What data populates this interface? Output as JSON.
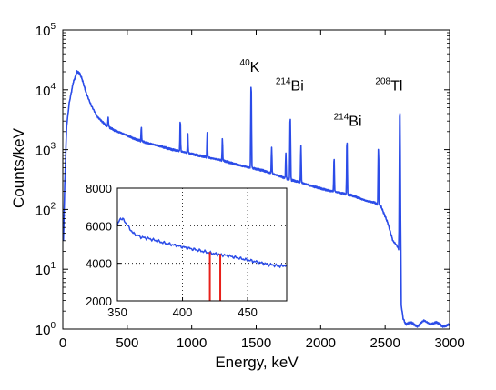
{
  "chart_data": [
    {
      "id": "main",
      "type": "line",
      "xlabel": "Energy, keV",
      "ylabel": "Counts/keV",
      "xlim": [
        0,
        3000
      ],
      "ylim": [
        1,
        100000
      ],
      "yscale": "log",
      "xticks": [
        0,
        500,
        1000,
        1500,
        2000,
        2500,
        3000
      ],
      "xtick_labels": [
        "0",
        "500",
        "1000",
        "1500",
        "2000",
        "2500",
        "3000"
      ],
      "yticks": [
        1,
        10,
        100,
        1000,
        10000,
        100000
      ],
      "ytick_labels": [
        {
          "base": "10",
          "exp": "0"
        },
        {
          "base": "10",
          "exp": "1"
        },
        {
          "base": "10",
          "exp": "2"
        },
        {
          "base": "10",
          "exp": "3"
        },
        {
          "base": "10",
          "exp": "4"
        },
        {
          "base": "10",
          "exp": "5"
        }
      ],
      "grid": false,
      "series_color": "#2b4ce8",
      "series": [
        {
          "x": [
            5,
            15,
            30,
            50,
            80,
            110,
            130,
            150,
            180,
            220,
            270,
            330,
            400,
            480,
            560,
            650,
            750,
            850,
            950,
            1050,
            1150,
            1250,
            1350,
            1450,
            1550,
            1650,
            1750,
            1850,
            1950,
            2050,
            2150,
            2250,
            2350,
            2420,
            2470,
            2520,
            2560,
            2590,
            2614,
            2620,
            2640,
            2660,
            2700,
            2750,
            2800,
            2850,
            2900,
            2950,
            3000
          ],
          "y": [
            30,
            250,
            2500,
            6000,
            13000,
            20000,
            19000,
            15000,
            9000,
            5500,
            3500,
            2600,
            2100,
            1800,
            1500,
            1300,
            1150,
            1000,
            900,
            800,
            720,
            650,
            560,
            500,
            450,
            380,
            320,
            280,
            240,
            210,
            190,
            170,
            140,
            130,
            110,
            60,
            30,
            25,
            20,
            3,
            1.5,
            1.2,
            1.3,
            1.1,
            1.4,
            1.2,
            1.3,
            1.1,
            1.2
          ]
        }
      ],
      "peaks": [
        {
          "x": 352,
          "y": 3500
        },
        {
          "x": 609,
          "y": 2400
        },
        {
          "x": 911,
          "y": 3200
        },
        {
          "x": 969,
          "y": 2000
        },
        {
          "x": 1120,
          "y": 1900
        },
        {
          "x": 1238,
          "y": 1500
        },
        {
          "x": 1461,
          "y": 12000
        },
        {
          "x": 1620,
          "y": 1100
        },
        {
          "x": 1730,
          "y": 900
        },
        {
          "x": 1764,
          "y": 3700
        },
        {
          "x": 1847,
          "y": 1200
        },
        {
          "x": 2104,
          "y": 750
        },
        {
          "x": 2204,
          "y": 1450
        },
        {
          "x": 2448,
          "y": 1050
        },
        {
          "x": 2614,
          "y": 4600
        }
      ],
      "annotations": [
        {
          "sup": "40",
          "base": "K",
          "x": 1450,
          "y": 20000
        },
        {
          "sup": "214",
          "base": "Bi",
          "x": 1760,
          "y": 9800
        },
        {
          "sup": "214",
          "base": "Bi",
          "x": 2210,
          "y": 2500
        },
        {
          "sup": "208",
          "base": "Tl",
          "x": 2530,
          "y": 9800
        }
      ]
    },
    {
      "id": "inset",
      "type": "line",
      "xlim": [
        350,
        480
      ],
      "ylim": [
        2000,
        8000
      ],
      "xticks": [
        350,
        400,
        450
      ],
      "xtick_labels": [
        "350",
        "400",
        "450"
      ],
      "yticks": [
        2000,
        4000,
        6000,
        8000
      ],
      "ytick_labels": [
        "2000",
        "4000",
        "6000",
        "8000"
      ],
      "grid": true,
      "series_color": "#2b4ce8",
      "marker_color": "#e8201a",
      "series": [
        {
          "x": [
            350,
            352,
            355,
            358,
            362,
            368,
            375,
            385,
            395,
            405,
            415,
            425,
            435,
            445,
            455,
            465,
            475,
            480
          ],
          "y": [
            6000,
            6400,
            6300,
            6000,
            5600,
            5400,
            5300,
            5100,
            4950,
            4800,
            4650,
            4500,
            4400,
            4250,
            4100,
            3950,
            3850,
            3900
          ]
        }
      ],
      "markers": [
        {
          "x": 421,
          "y_top": 4600
        },
        {
          "x": 429,
          "y_top": 4500
        }
      ]
    }
  ]
}
